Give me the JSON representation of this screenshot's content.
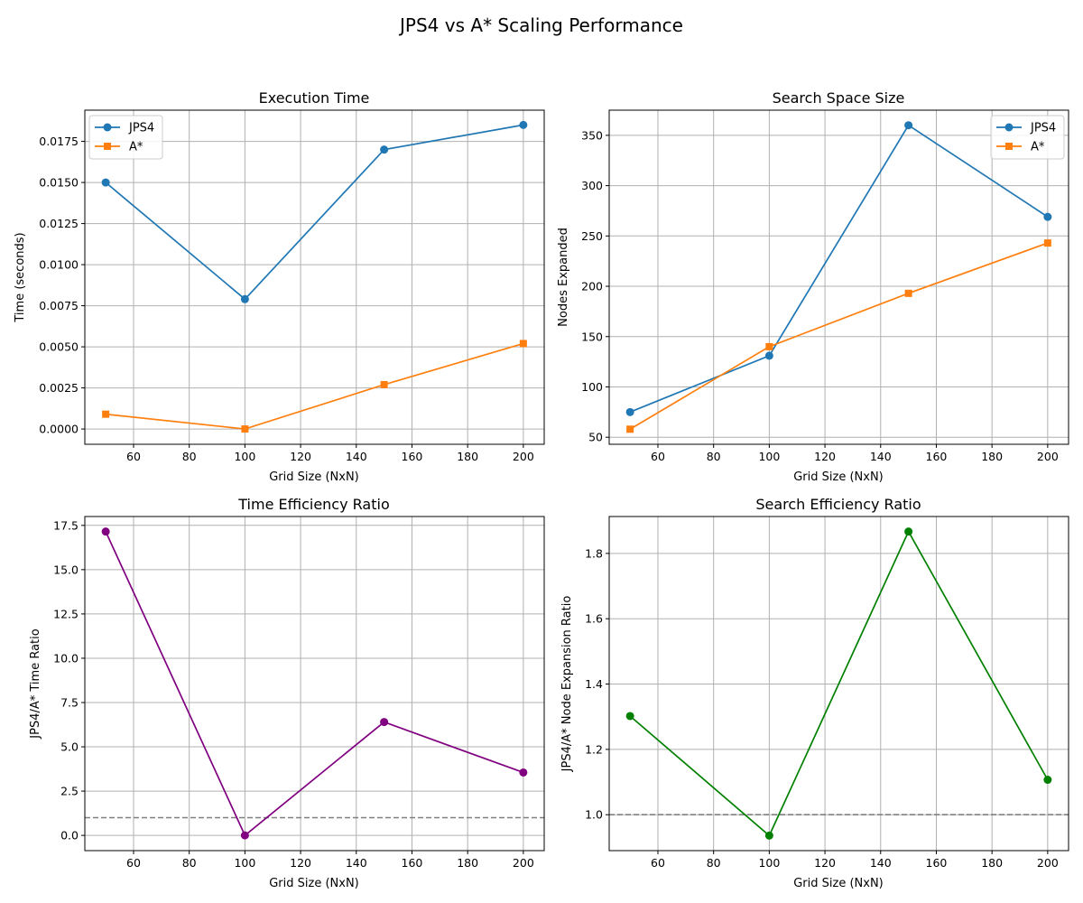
{
  "figure": {
    "title": "JPS4 vs A* Scaling Performance"
  },
  "chart_data": [
    {
      "type": "line",
      "title": "Execution Time",
      "xlabel": "Grid Size (NxN)",
      "ylabel": "Time (seconds)",
      "x": [
        50,
        100,
        150,
        200
      ],
      "series": [
        {
          "name": "JPS4",
          "values": [
            0.015,
            0.0079,
            0.017,
            0.0185
          ],
          "color": "#1f77b4",
          "marker": "circle"
        },
        {
          "name": "A*",
          "values": [
            0.0009,
            0.0,
            0.0027,
            0.0052
          ],
          "color": "#ff7f0e",
          "marker": "square"
        }
      ],
      "xlim": [
        42.5,
        207.5
      ],
      "ylim": [
        -0.00093,
        0.0194
      ],
      "xticks": [
        60,
        80,
        100,
        120,
        140,
        160,
        180,
        200
      ],
      "yticks": [
        0.0,
        0.0025,
        0.005,
        0.0075,
        0.01,
        0.0125,
        0.015,
        0.0175
      ],
      "ytick_labels": [
        "0.0000",
        "0.0025",
        "0.0050",
        "0.0075",
        "0.0100",
        "0.0125",
        "0.0150",
        "0.0175"
      ],
      "grid": true,
      "legend": "upper left"
    },
    {
      "type": "line",
      "title": "Search Space Size",
      "xlabel": "Grid Size (NxN)",
      "ylabel": "Nodes Expanded",
      "x": [
        50,
        100,
        150,
        200
      ],
      "series": [
        {
          "name": "JPS4",
          "values": [
            75,
            131,
            360,
            269
          ],
          "color": "#1f77b4",
          "marker": "circle"
        },
        {
          "name": "A*",
          "values": [
            58,
            140,
            193,
            243
          ],
          "color": "#ff7f0e",
          "marker": "square"
        }
      ],
      "xlim": [
        42.5,
        207.5
      ],
      "ylim": [
        43,
        375
      ],
      "xticks": [
        60,
        80,
        100,
        120,
        140,
        160,
        180,
        200
      ],
      "yticks": [
        50,
        100,
        150,
        200,
        250,
        300,
        350
      ],
      "ytick_labels": [
        "50",
        "100",
        "150",
        "200",
        "250",
        "300",
        "350"
      ],
      "grid": true,
      "legend": "upper right"
    },
    {
      "type": "line",
      "title": "Time Efficiency Ratio",
      "xlabel": "Grid Size (NxN)",
      "ylabel": "JPS4/A* Time Ratio",
      "x": [
        50,
        100,
        150,
        200
      ],
      "series": [
        {
          "values": [
            17.15,
            0.0,
            6.4,
            3.55
          ],
          "color": "#800080",
          "marker": "circle"
        }
      ],
      "reference_line": {
        "y": 1.0,
        "style": "dashed",
        "color": "#808080"
      },
      "xlim": [
        42.5,
        207.5
      ],
      "ylim": [
        -0.86,
        18.0
      ],
      "xticks": [
        60,
        80,
        100,
        120,
        140,
        160,
        180,
        200
      ],
      "yticks": [
        0.0,
        2.5,
        5.0,
        7.5,
        10.0,
        12.5,
        15.0,
        17.5
      ],
      "ytick_labels": [
        "0.0",
        "2.5",
        "5.0",
        "7.5",
        "10.0",
        "12.5",
        "15.0",
        "17.5"
      ],
      "grid": true
    },
    {
      "type": "line",
      "title": "Search Efficiency Ratio",
      "xlabel": "Grid Size (NxN)",
      "ylabel": "JPS4/A* Node Expansion Ratio",
      "x": [
        50,
        100,
        150,
        200
      ],
      "series": [
        {
          "values": [
            1.302,
            0.936,
            1.867,
            1.107
          ],
          "color": "#008000",
          "marker": "circle"
        }
      ],
      "reference_line": {
        "y": 1.0,
        "style": "dashed",
        "color": "#808080"
      },
      "xlim": [
        42.5,
        207.5
      ],
      "ylim": [
        0.89,
        1.913
      ],
      "xticks": [
        60,
        80,
        100,
        120,
        140,
        160,
        180,
        200
      ],
      "yticks": [
        1.0,
        1.2,
        1.4,
        1.6,
        1.8
      ],
      "ytick_labels": [
        "1.0",
        "1.2",
        "1.4",
        "1.6",
        "1.8"
      ],
      "grid": true
    }
  ]
}
